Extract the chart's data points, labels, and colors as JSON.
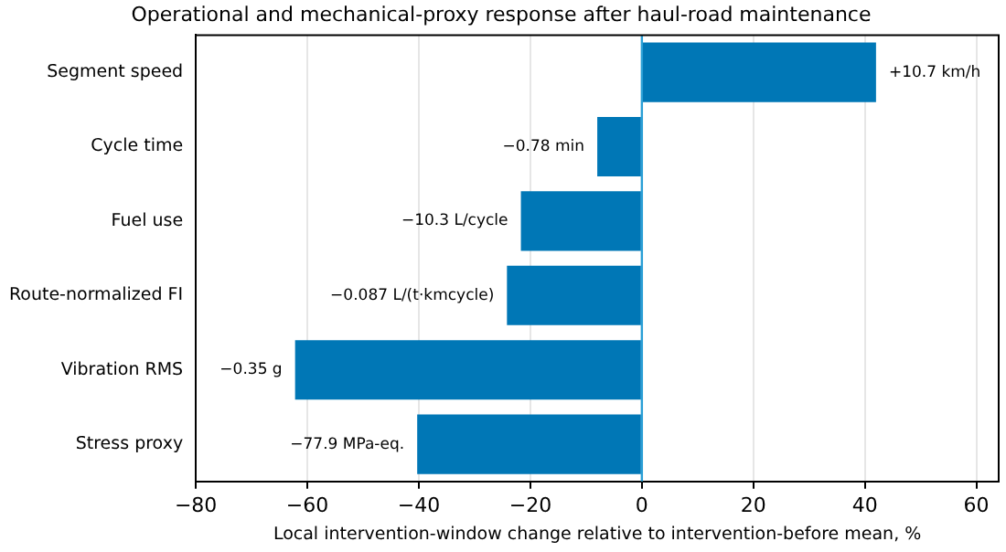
{
  "chart_data": {
    "type": "bar",
    "orientation": "horizontal",
    "title": "Operational and mechanical-proxy response after haul-road maintenance",
    "xlabel": "Local intervention-window change relative to intervention-before mean, %",
    "categories": [
      "Segment speed",
      "Cycle time",
      "Fuel use",
      "Route-normalized FI",
      "Vibration RMS",
      "Stress proxy"
    ],
    "values": [
      42.0,
      -8.0,
      -21.7,
      -24.2,
      -62.2,
      -40.3
    ],
    "annotations": [
      {
        "text": "+10.7 km/h",
        "x": 42.0,
        "y": "Segment speed"
      },
      {
        "text": "−0.78 min",
        "x": -8.0,
        "y": "Cycle time"
      },
      {
        "text": "−10.3 L/cycle",
        "x": -21.7,
        "y": "Fuel use"
      },
      {
        "text": "−0.087 L/(t·kmcycle)",
        "x": -24.2,
        "y": "Route-normalized FI"
      },
      {
        "text": "−0.35 g",
        "x": -62.2,
        "y": "Vibration RMS"
      },
      {
        "text": "−77.9 MPa-eq.",
        "x": -40.3,
        "y": "Stress proxy"
      }
    ],
    "color": "#0077b6",
    "xlim": [
      -80,
      64
    ],
    "xticks": [
      -80,
      -60,
      -40,
      -20,
      0,
      20,
      40,
      60
    ],
    "ref_lines": [
      {
        "axis": "x",
        "value": 0,
        "color": "#2a9fd6"
      }
    ],
    "grid": "x",
    "legend": false
  }
}
